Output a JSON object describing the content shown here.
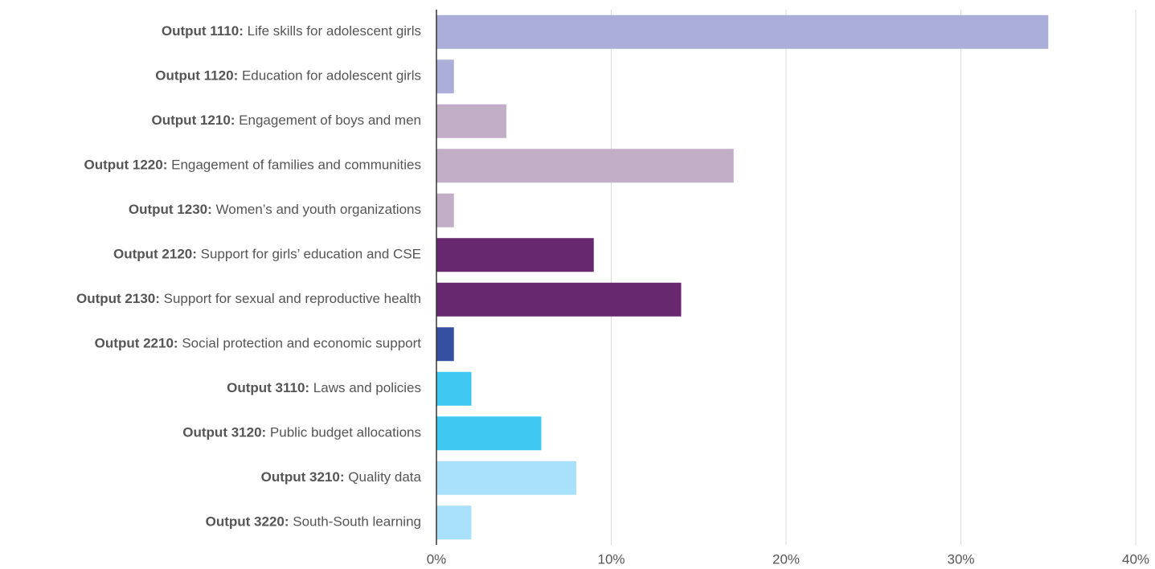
{
  "chart_data": {
    "type": "bar",
    "orientation": "horizontal",
    "categories": [
      {
        "code": "Output 1110:",
        "name": "Life skills for adolescent girls"
      },
      {
        "code": "Output 1120:",
        "name": "Education for adolescent girls"
      },
      {
        "code": "Output 1210:",
        "name": "Engagement of boys and men"
      },
      {
        "code": "Output 1220:",
        "name": "Engagement of families and communities"
      },
      {
        "code": "Output 1230:",
        "name": "Women’s and youth organizations"
      },
      {
        "code": "Output 2120:",
        "name": "Support for girls’ education and CSE"
      },
      {
        "code": "Output 2130:",
        "name": "Support for sexual and reproductive health"
      },
      {
        "code": "Output 2210:",
        "name": "Social protection and economic support"
      },
      {
        "code": "Output 3110:",
        "name": "Laws and policies"
      },
      {
        "code": "Output 3120:",
        "name": "Public budget allocations"
      },
      {
        "code": "Output 3210:",
        "name": "Quality data"
      },
      {
        "code": "Output 3220:",
        "name": "South-South learning"
      }
    ],
    "values": [
      35,
      1,
      4,
      17,
      1,
      9,
      14,
      1,
      2,
      6,
      8,
      2
    ],
    "colors": [
      "#aaaed8",
      "#aaaed8",
      "#c3aec8",
      "#c3aec8",
      "#c3aec8",
      "#68286f",
      "#68286f",
      "#3550a0",
      "#3ec8f2",
      "#3ec8f2",
      "#a9e0fa",
      "#a9e0fa"
    ],
    "xlim": [
      0,
      40
    ],
    "xticks": [
      {
        "value": 0,
        "label": "0%"
      },
      {
        "value": 10,
        "label": "10%"
      },
      {
        "value": 20,
        "label": "20%"
      },
      {
        "value": 30,
        "label": "30%"
      },
      {
        "value": 40,
        "label": "40%"
      }
    ],
    "grid": true
  }
}
